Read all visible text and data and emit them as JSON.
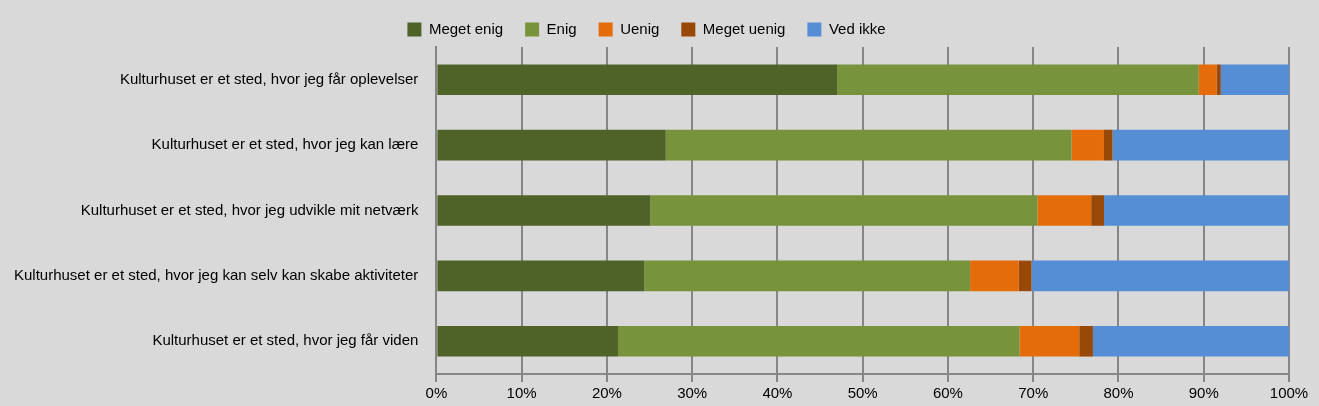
{
  "chart_data": {
    "type": "bar",
    "orientation": "horizontal",
    "stacked": true,
    "categories": [
      "Kulturhuset er et sted, hvor jeg får oplevelser",
      "Kulturhuset er et sted, hvor jeg kan lære",
      "Kulturhuset er et sted, hvor jeg udvikle mit netværk",
      "Kulturhuset er et sted, hvor jeg kan selv kan skabe aktiviteter",
      "Kulturhuset er et sted, hvor jeg får viden"
    ],
    "series": [
      {
        "name": "Meget enig",
        "color": "#4f6228",
        "values": [
          47.0,
          26.9,
          25.1,
          24.4,
          21.3
        ]
      },
      {
        "name": "Enig",
        "color": "#77933c",
        "values": [
          42.4,
          47.6,
          45.4,
          38.2,
          47.1
        ]
      },
      {
        "name": "Uenig",
        "color": "#e46c0a",
        "values": [
          2.1,
          3.8,
          6.3,
          5.7,
          7.0
        ]
      },
      {
        "name": "Meget uenig",
        "color": "#984807",
        "values": [
          0.5,
          1.0,
          1.5,
          1.5,
          1.6
        ]
      },
      {
        "name": "Ved ikke",
        "color": "#558ed5",
        "values": [
          8.0,
          20.7,
          21.7,
          30.2,
          23.0
        ]
      }
    ],
    "xlim": [
      0,
      100
    ],
    "xticks": [
      {
        "value": 0,
        "label": "0%"
      },
      {
        "value": 10,
        "label": "10%"
      },
      {
        "value": 20,
        "label": "20%"
      },
      {
        "value": 30,
        "label": "30%"
      },
      {
        "value": 40,
        "label": "40%"
      },
      {
        "value": 50,
        "label": "50%"
      },
      {
        "value": 60,
        "label": "60%"
      },
      {
        "value": 70,
        "label": "70%"
      },
      {
        "value": 80,
        "label": "80%"
      },
      {
        "value": 90,
        "label": "90%"
      },
      {
        "value": 100,
        "label": "100%"
      }
    ],
    "grid": "x",
    "legend": "top"
  }
}
